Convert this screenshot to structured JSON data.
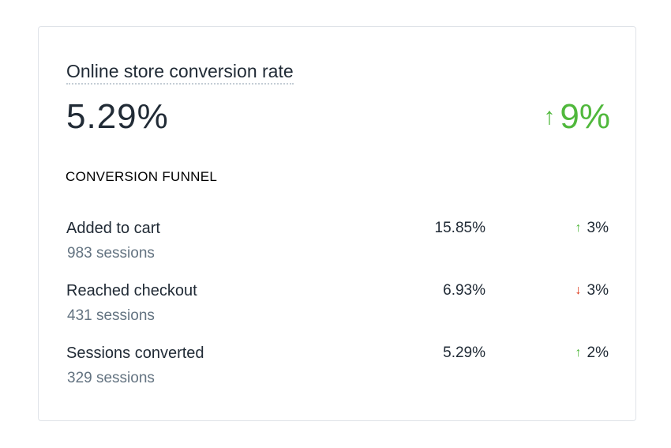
{
  "card": {
    "title": "Online store conversion rate",
    "value": "5.29%",
    "change": {
      "direction": "up",
      "arrow": "↑",
      "text": "9%"
    }
  },
  "funnel": {
    "heading": "CONVERSION FUNNEL",
    "rows": [
      {
        "label": "Added to cart",
        "sessions": "983 sessions",
        "value": "15.85%",
        "change": {
          "direction": "up",
          "arrow": "↑",
          "text": "3%"
        }
      },
      {
        "label": "Reached checkout",
        "sessions": "431 sessions",
        "value": "6.93%",
        "change": {
          "direction": "down",
          "arrow": "↓",
          "text": "3%"
        }
      },
      {
        "label": "Sessions converted",
        "sessions": "329 sessions",
        "value": "5.29%",
        "change": {
          "direction": "up",
          "arrow": "↑",
          "text": "2%"
        }
      }
    ]
  },
  "colors": {
    "up": "#50b83c",
    "down": "#de3618",
    "muted": "#637381",
    "text": "#212b36"
  }
}
